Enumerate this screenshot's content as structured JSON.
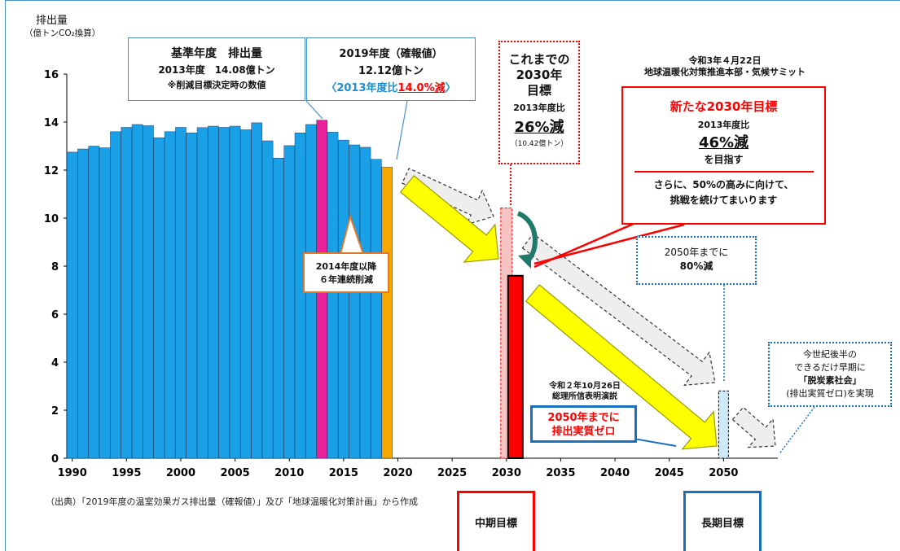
{
  "colors": {
    "bar_default": "#1aa0e6",
    "bar_base_year": "#e8219a",
    "bar_2019": "#f5a800",
    "bar_2030_old": "#f6c3c3",
    "bar_2030_new": "#ff0000",
    "bar_2050": "#cdeaf8",
    "arrow_yellow": "#ffff00",
    "accent_red": "#ff0000",
    "accent_blue": "#1a6fbf",
    "frame_blue": "#4a90c8"
  },
  "axis": {
    "ylabel_line1": "排出量",
    "ylabel_line2": "（億トンCO₂換算）"
  },
  "callouts": {
    "base": {
      "l1": "基準年度　排出量",
      "l2": "2013年度　14.08億トン",
      "l3": "※削減目標決定時の数値"
    },
    "y2019": {
      "l1": "2019年度（確報値）",
      "l2": "12.12億トン",
      "l3a": "〈2013年度比",
      "l3b": "14.0%減",
      "l3c": "〉"
    },
    "old2030": {
      "l1": "これまでの",
      "l2": "2030年",
      "l3": "目標",
      "l4": "2013年度比",
      "l5": "26%減",
      "l6": "（10.42億トン）"
    },
    "summit": {
      "l1": "令和3年４月22日",
      "l2": "地球温暖化対策推進本部・気候サミット"
    },
    "new2030": {
      "l1": "新たな2030年目標",
      "l2": "2013年度比",
      "l3": "46%減",
      "l4": "を目指す",
      "l5": "さらに、50%の高みに向けて、",
      "l6": "挑戦を続けてまいります"
    },
    "consec": {
      "l1": "2014年度以降",
      "l2": "６年連続削減"
    },
    "target2050_80": {
      "l1": "2050年までに",
      "l2": "80%減"
    },
    "speech": {
      "l1": "令和２年10月26日",
      "l2": "総理所信表明演説"
    },
    "zero": {
      "l1": "2050年までに",
      "l2": "排出実質ゼロ"
    },
    "decarb": {
      "l1": "今世紀後半の",
      "l2": "できるだけ早期に",
      "l3": "「脱炭素社会」",
      "l4": "(排出実質ゼロ)を実現"
    }
  },
  "source_note": "（出典）「2019年度の温室効果ガス排出量（確報値）」及び「地球温暖化対策計画」から作成",
  "targets": {
    "mid": "中期目標",
    "long": "長期目標"
  },
  "chart_data": {
    "type": "bar",
    "ylabel": "排出量（億トンCO₂換算）",
    "ylim": [
      0,
      16
    ],
    "yticks": [
      0,
      2,
      4,
      6,
      8,
      10,
      12,
      14,
      16
    ],
    "xticks": [
      1990,
      1995,
      2000,
      2005,
      2010,
      2015,
      2020,
      2025,
      2030,
      2035,
      2040,
      2045,
      2050
    ],
    "xlim": [
      1989.5,
      2055
    ],
    "historical": {
      "x": [
        1990,
        1991,
        1992,
        1993,
        1994,
        1995,
        1996,
        1997,
        1998,
        1999,
        2000,
        2001,
        2002,
        2003,
        2004,
        2005,
        2006,
        2007,
        2008,
        2009,
        2010,
        2011,
        2012,
        2013,
        2014,
        2015,
        2016,
        2017,
        2018,
        2019
      ],
      "values": [
        12.75,
        12.88,
        13.0,
        12.93,
        13.6,
        13.78,
        13.9,
        13.85,
        13.35,
        13.6,
        13.78,
        13.55,
        13.77,
        13.83,
        13.78,
        13.83,
        13.68,
        13.97,
        13.22,
        12.5,
        13.02,
        13.55,
        13.9,
        14.08,
        13.58,
        13.25,
        13.05,
        12.95,
        12.45,
        12.12
      ]
    },
    "highlights": {
      "base_year": 2013,
      "latest_year": 2019
    },
    "targets": [
      {
        "year": 2030,
        "value": 10.42,
        "kind": "old"
      },
      {
        "year": 2030,
        "value": 7.6,
        "kind": "new"
      },
      {
        "year": 2050,
        "value": 2.8,
        "kind": "long"
      }
    ]
  }
}
